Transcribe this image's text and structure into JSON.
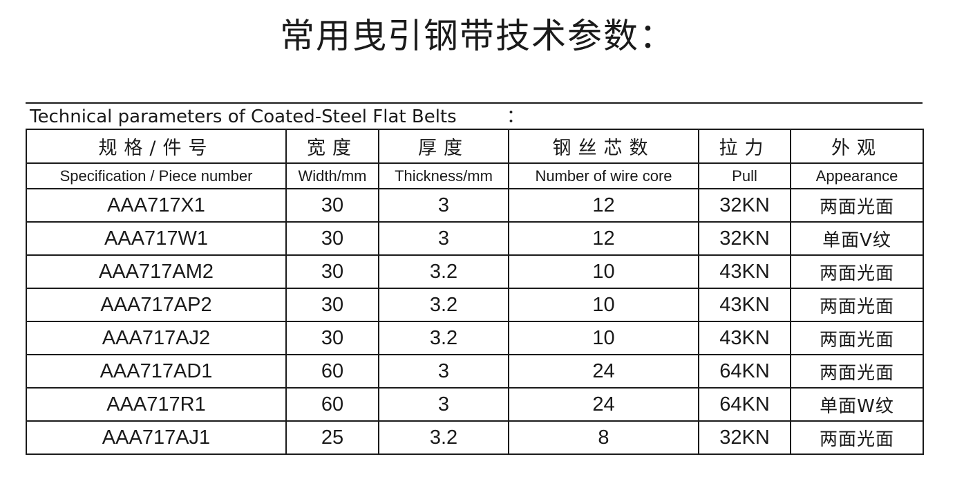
{
  "title": "常用曳引钢带技术参数：",
  "caption": "Technical parameters of Coated-Steel Flat Belts",
  "caption_colon": "：",
  "headers_cn": [
    "规格/件号",
    "宽度",
    "厚度",
    "钢丝芯数",
    "拉力",
    "外观"
  ],
  "headers_en": [
    "Specification / Piece number",
    "Width/mm",
    "Thickness/mm",
    "Number of wire core",
    "Pull",
    "Appearance"
  ],
  "rows": [
    {
      "spec": "AAA717X1",
      "width": "30",
      "thickness": "3",
      "wire_core": "12",
      "pull": "32KN",
      "appearance": "两面光面"
    },
    {
      "spec": "AAA717W1",
      "width": "30",
      "thickness": "3",
      "wire_core": "12",
      "pull": "32KN",
      "appearance": "单面V纹"
    },
    {
      "spec": "AAA717AM2",
      "width": "30",
      "thickness": "3.2",
      "wire_core": "10",
      "pull": "43KN",
      "appearance": "两面光面"
    },
    {
      "spec": "AAA717AP2",
      "width": "30",
      "thickness": "3.2",
      "wire_core": "10",
      "pull": "43KN",
      "appearance": "两面光面"
    },
    {
      "spec": "AAA717AJ2",
      "width": "30",
      "thickness": "3.2",
      "wire_core": "10",
      "pull": "43KN",
      "appearance": "两面光面"
    },
    {
      "spec": "AAA717AD1",
      "width": "60",
      "thickness": "3",
      "wire_core": "24",
      "pull": "64KN",
      "appearance": "两面光面"
    },
    {
      "spec": "AAA717R1",
      "width": "60",
      "thickness": "3",
      "wire_core": "24",
      "pull": "64KN",
      "appearance": "单面W纹"
    },
    {
      "spec": "AAA717AJ1",
      "width": "25",
      "thickness": "3.2",
      "wire_core": "8",
      "pull": "32KN",
      "appearance": "两面光面"
    }
  ]
}
